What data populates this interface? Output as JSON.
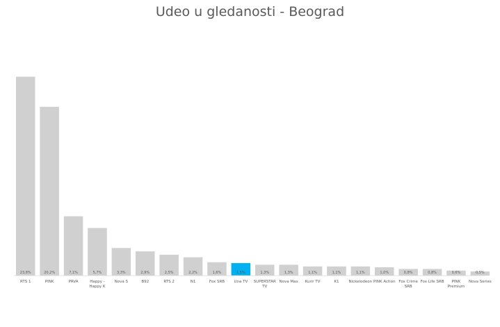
{
  "chart_data": {
    "type": "bar",
    "title": "Udeo u gledanosti - Beograd",
    "xlabel": "",
    "ylabel": "",
    "ylim": [
      0,
      25.5
    ],
    "grid": false,
    "legend": "none",
    "bar_color": "#d0d0d0",
    "highlight_color": "#00b0f0",
    "highlight_index": 9,
    "categories": [
      "RTS 1",
      "PINK",
      "PRVA",
      "Happy - Happy K",
      "Nova S",
      "B92",
      "RTS 2",
      "N1",
      "Fox SRB",
      "Una TV",
      "SUPERSTAR TV",
      "Nova Max",
      "Kurir TV",
      "K1",
      "Nickelodeon",
      "PINK Action",
      "Fox Crime SRB",
      "Fox Life SRB",
      "PINK Premium",
      "Nova Series"
    ],
    "category_lines": [
      [
        "RTS 1"
      ],
      [
        "PINK"
      ],
      [
        "PRVA"
      ],
      [
        "Happy -",
        "Happy K"
      ],
      [
        "Nova S"
      ],
      [
        "B92"
      ],
      [
        "RTS 2"
      ],
      [
        "N1"
      ],
      [
        "Fox SRB"
      ],
      [
        "Una TV"
      ],
      [
        "SUPERSTAR",
        "TV"
      ],
      [
        "Nova Max"
      ],
      [
        "Kurir TV"
      ],
      [
        "K1"
      ],
      [
        "Nickelodeon"
      ],
      [
        "PINK Action"
      ],
      [
        "Fox Crime",
        "SRB"
      ],
      [
        "Fox Life SRB"
      ],
      [
        "PINK",
        "Premium"
      ],
      [
        "Nova Series"
      ]
    ],
    "values": [
      23.8,
      20.2,
      7.1,
      5.7,
      3.3,
      2.9,
      2.5,
      2.2,
      1.6,
      1.5,
      1.3,
      1.3,
      1.1,
      1.1,
      1.1,
      1.0,
      0.8,
      0.8,
      0.6,
      0.5
    ],
    "value_labels": [
      "23,8%",
      "20,2%",
      "7,1%",
      "5,7%",
      "3,3%",
      "2,9%",
      "2,5%",
      "2,2%",
      "1,6%",
      "1,5%",
      "1,3%",
      "1,3%",
      "1,1%",
      "1,1%",
      "1,1%",
      "1,0%",
      "0,8%",
      "0,8%",
      "0,6%",
      "0,5%"
    ]
  }
}
